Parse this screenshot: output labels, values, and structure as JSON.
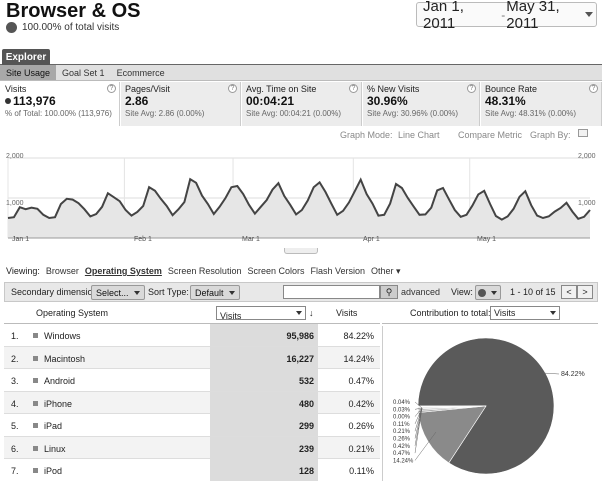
{
  "header": {
    "title": "Browser & OS",
    "subtitle": "100.00% of total visits",
    "date_start": "Jan 1, 2011",
    "date_sep": "-",
    "date_end": "May 31, 2011"
  },
  "tabs": {
    "explorer": "Explorer"
  },
  "subtabs": [
    "Site Usage",
    "Goal Set 1",
    "Ecommerce"
  ],
  "metrics": [
    {
      "label": "Visits",
      "value": "113,976",
      "sub": "% of Total: 100.00% (113,976)"
    },
    {
      "label": "Pages/Visit",
      "value": "2.86",
      "sub": "Site Avg: 2.86 (0.00%)"
    },
    {
      "label": "Avg. Time on Site",
      "value": "00:04:21",
      "sub": "Site Avg: 00:04:21 (0.00%)"
    },
    {
      "label": "% New Visits",
      "value": "30.96%",
      "sub": "Site Avg: 30.96% (0.00%)"
    },
    {
      "label": "Bounce Rate",
      "value": "48.31%",
      "sub": "Site Avg: 48.31% (0.00%)"
    }
  ],
  "help_glyph": "?",
  "graph_options": {
    "mode_label": "Graph Mode:",
    "mode_value": "Line Chart",
    "compare": "Compare Metric",
    "graph_by": "Graph By:"
  },
  "chart_data": {
    "type": "area",
    "x_labels": [
      "Jan 1",
      "Feb 1",
      "Mar 1",
      "Apr 1",
      "May 1"
    ],
    "y_ticks_left": [
      "2,000",
      "1,000"
    ],
    "y_ticks_right": [
      "2,000",
      "1,000"
    ],
    "ylim": [
      0,
      2000
    ],
    "series": [
      {
        "values": [
          500,
          520,
          770,
          720,
          760,
          730,
          580,
          500,
          520,
          850,
          980,
          960,
          870,
          720,
          540,
          600,
          780,
          1120,
          1020,
          920,
          700,
          560,
          650,
          800,
          1270,
          1180,
          980,
          800,
          570,
          720,
          900,
          1470,
          1380,
          1060,
          850,
          600,
          780,
          1000,
          1270,
          1300,
          1100,
          830,
          610,
          780,
          950,
          1210,
          1370,
          1050,
          830,
          590,
          700,
          940,
          1270,
          1390,
          1150,
          860,
          580,
          680,
          890,
          1170,
          1460,
          1100,
          860,
          560,
          580,
          860,
          1350,
          1250,
          1000,
          790,
          580,
          590,
          760,
          1190,
          1250,
          970,
          700,
          530,
          580,
          810,
          1090,
          1180,
          850,
          550,
          460,
          540,
          730,
          1030,
          1170,
          820,
          560,
          500,
          540,
          660,
          750,
          880,
          660,
          480,
          530,
          700
        ]
      }
    ]
  },
  "viewing": {
    "label": "Viewing:",
    "links": [
      "Browser",
      "Operating System",
      "Screen Resolution",
      "Screen Colors",
      "Flash Version",
      "Other"
    ]
  },
  "toolbar": {
    "secondary_label": "Secondary dimension:",
    "secondary_value": "Select...",
    "sort_label": "Sort Type:",
    "sort_value": "Default",
    "search_placeholder": "",
    "advanced": "advanced",
    "view_label": "View:",
    "pager_text": "1 - 10 of 15",
    "prev": "<",
    "next": ">"
  },
  "table": {
    "col_dimension": "Operating System",
    "col_sort_metric": "Visits",
    "col_visits": "Visits",
    "contribution_label": "Contribution to total:",
    "contribution_value": "Visits",
    "rows": [
      {
        "n": "1.",
        "os": "Windows",
        "visits": "95,986",
        "pct": "84.22%"
      },
      {
        "n": "2.",
        "os": "Macintosh",
        "visits": "16,227",
        "pct": "14.24%"
      },
      {
        "n": "3.",
        "os": "Android",
        "visits": "532",
        "pct": "0.47%"
      },
      {
        "n": "4.",
        "os": "iPhone",
        "visits": "480",
        "pct": "0.42%"
      },
      {
        "n": "5.",
        "os": "iPad",
        "visits": "299",
        "pct": "0.26%"
      },
      {
        "n": "6.",
        "os": "Linux",
        "visits": "239",
        "pct": "0.21%"
      },
      {
        "n": "7.",
        "os": "iPod",
        "visits": "128",
        "pct": "0.11%"
      }
    ]
  },
  "pie": {
    "main_label": "84.22%",
    "small_labels": [
      "0.04%",
      "0.03%",
      "0.00%",
      "0.11%",
      "0.21%",
      "0.26%",
      "0.42%",
      "0.47%",
      "14.24%"
    ],
    "slices": [
      84.22,
      14.24,
      0.47,
      0.42,
      0.26,
      0.21,
      0.11,
      0.0,
      0.03,
      0.04
    ],
    "colors": [
      "#5a5a5a",
      "#8a8a8a",
      "#aaaaaa",
      "#bbbbbb",
      "#cccccc",
      "#999999",
      "#777777",
      "#666666",
      "#444444",
      "#333333"
    ]
  }
}
